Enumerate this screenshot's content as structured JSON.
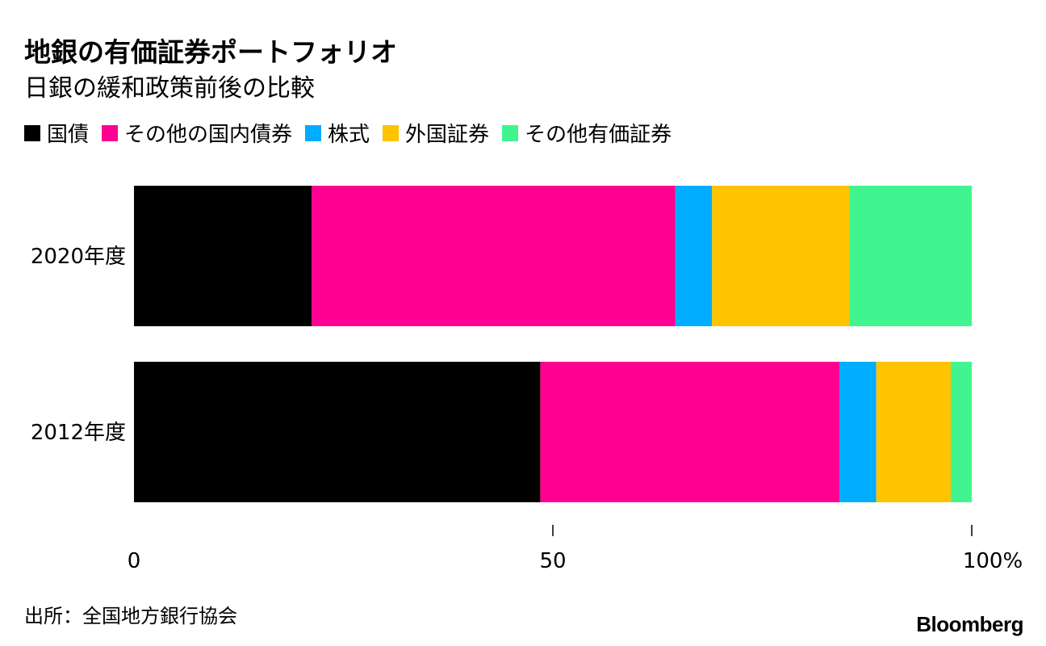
{
  "chart_data": {
    "type": "bar",
    "orientation": "horizontal",
    "stacked": true,
    "title": "地銀の有価証券ポートフォリオ",
    "subtitle": "日銀の緩和政策前後の比較",
    "categories": [
      "2020年度",
      "2012年度"
    ],
    "series": [
      {
        "name": "国債",
        "color": "#000000",
        "values": [
          21.2,
          48.5
        ]
      },
      {
        "name": "その他の国内債券",
        "color": "#ff0090",
        "values": [
          43.4,
          35.7
        ]
      },
      {
        "name": "株式",
        "color": "#00adff",
        "values": [
          4.4,
          4.4
        ]
      },
      {
        "name": "外国証券",
        "color": "#ffc300",
        "values": [
          16.4,
          8.9
        ]
      },
      {
        "name": "その他有価証券",
        "color": "#40f58f",
        "values": [
          14.6,
          2.5
        ]
      }
    ],
    "xlim": [
      0,
      100
    ],
    "xticks": [
      "0",
      "50",
      "100%"
    ],
    "xtick_values": [
      0,
      50,
      100
    ],
    "legend_position": "top-left",
    "grid": false
  },
  "footer": {
    "source": "出所：全国地方銀行協会",
    "brand": "Bloomberg"
  }
}
